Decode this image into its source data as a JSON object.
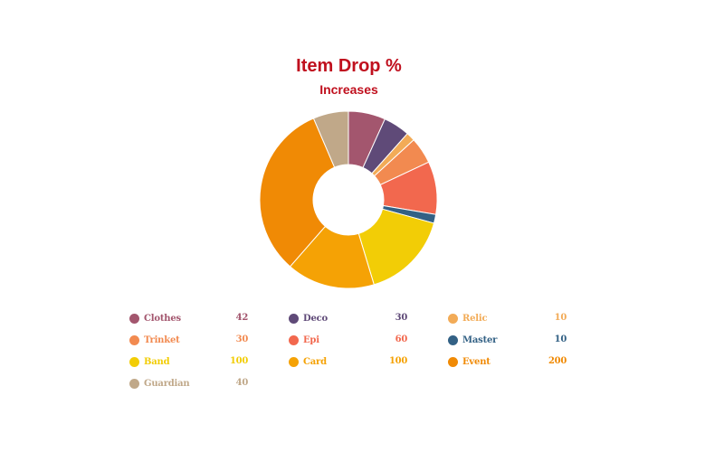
{
  "chart_data": {
    "type": "pie",
    "variant": "donut",
    "title": "Item Drop %",
    "subtitle": "Increases",
    "categories": [
      "Clothes",
      "Deco",
      "Relic",
      "Trinket",
      "Epi",
      "Master",
      "Band",
      "Card",
      "Event",
      "Guardian"
    ],
    "values": [
      42,
      30,
      10,
      30,
      60,
      10,
      100,
      100,
      200,
      40
    ],
    "colors": [
      "#a3566e",
      "#5f4a78",
      "#f2ab57",
      "#f28a50",
      "#f2684e",
      "#336185",
      "#f2cd06",
      "#f5a205",
      "#f08a05",
      "#c0a889"
    ],
    "legend_position": "bottom",
    "start_angle": "top",
    "direction": "clockwise"
  },
  "header": {
    "title": "Item Drop %",
    "subtitle": "Increases"
  },
  "legend": {
    "items": [
      {
        "label": "Clothes",
        "value": "42",
        "color": "#a3566e"
      },
      {
        "label": "Deco",
        "value": "30",
        "color": "#5f4a78"
      },
      {
        "label": "Relic",
        "value": "10",
        "color": "#f2ab57"
      },
      {
        "label": "Trinket",
        "value": "30",
        "color": "#f28a50"
      },
      {
        "label": "Epi",
        "value": "60",
        "color": "#f2684e"
      },
      {
        "label": "Master",
        "value": "10",
        "color": "#336185"
      },
      {
        "label": "Band",
        "value": "100",
        "color": "#f2cd06"
      },
      {
        "label": "Card",
        "value": "100",
        "color": "#f5a205"
      },
      {
        "label": "Event",
        "value": "200",
        "color": "#f08a05"
      },
      {
        "label": "Guardian",
        "value": "40",
        "color": "#c0a889"
      }
    ]
  }
}
